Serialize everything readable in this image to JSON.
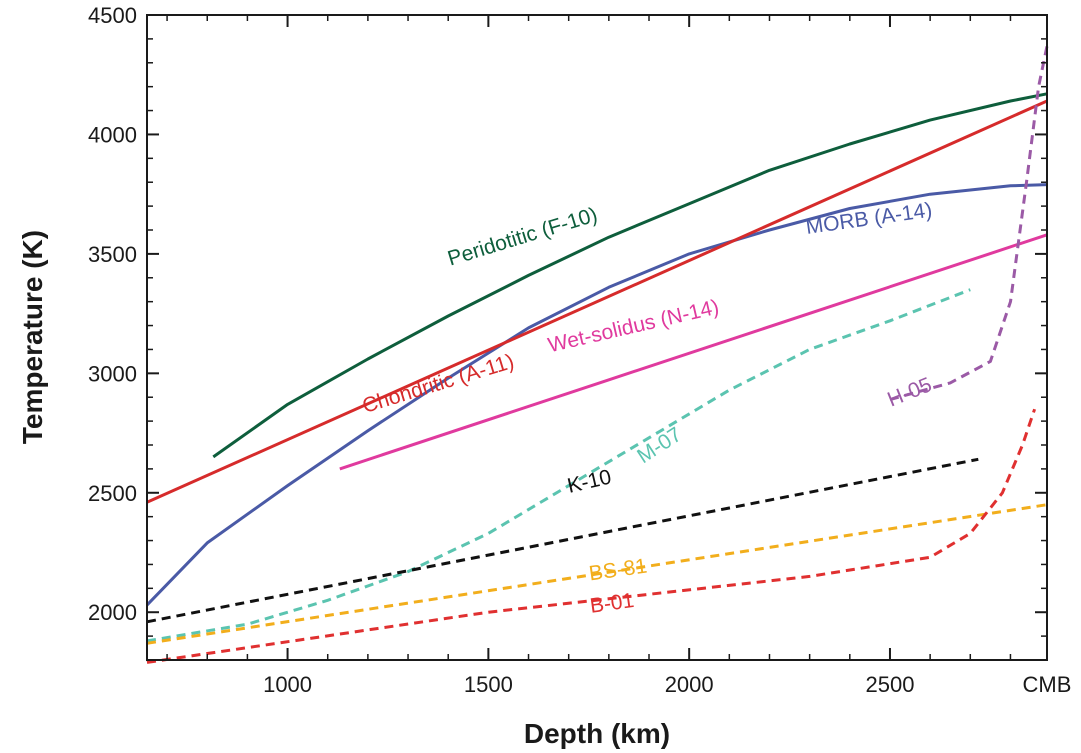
{
  "chart_data": {
    "type": "line",
    "title": "",
    "xlabel": "Depth (km)",
    "ylabel": "Temperature (K)",
    "xlim": [
      650,
      2891
    ],
    "ylim": [
      1800,
      4500
    ],
    "xticks": [
      {
        "value": 1000,
        "label": "1000"
      },
      {
        "value": 1500,
        "label": "1500"
      },
      {
        "value": 2000,
        "label": "2000"
      },
      {
        "value": 2500,
        "label": "2500"
      },
      {
        "value": 2891,
        "label": "CMB"
      }
    ],
    "yticks": [
      2000,
      2500,
      3000,
      3500,
      4000,
      4500
    ],
    "grid": false,
    "legend": "none (inline labels)",
    "series": [
      {
        "name": "Peridotitic (F-10)",
        "color": "#0e5e3c",
        "style": "solid",
        "label_pos": [
          1590,
          3545
        ],
        "label_rot": -17,
        "points": [
          [
            815,
            2650
          ],
          [
            1000,
            2870
          ],
          [
            1200,
            3060
          ],
          [
            1400,
            3240
          ],
          [
            1600,
            3410
          ],
          [
            1800,
            3570
          ],
          [
            2000,
            3710
          ],
          [
            2200,
            3850
          ],
          [
            2400,
            3960
          ],
          [
            2600,
            4060
          ],
          [
            2800,
            4140
          ],
          [
            2891,
            4170
          ]
        ]
      },
      {
        "name": "MORB (A-14)",
        "color": "#4a5aa6",
        "style": "solid",
        "label_pos": [
          2450,
          3620
        ],
        "label_rot": -8,
        "points": [
          [
            650,
            2030
          ],
          [
            800,
            2290
          ],
          [
            1000,
            2530
          ],
          [
            1200,
            2760
          ],
          [
            1400,
            2980
          ],
          [
            1600,
            3190
          ],
          [
            1800,
            3360
          ],
          [
            2000,
            3500
          ],
          [
            2200,
            3600
          ],
          [
            2400,
            3690
          ],
          [
            2600,
            3750
          ],
          [
            2800,
            3785
          ],
          [
            2891,
            3790
          ]
        ]
      },
      {
        "name": "Chondritic (A-11)",
        "color": "#d62b2b",
        "style": "solid",
        "label_pos": [
          1380,
          2930
        ],
        "label_rot": -17,
        "points": [
          [
            650,
            2460
          ],
          [
            2891,
            4140
          ]
        ]
      },
      {
        "name": "Wet-solidus (N-14)",
        "color": "#e03a9e",
        "style": "solid",
        "label_pos": [
          1865,
          3170
        ],
        "label_rot": -13,
        "points": [
          [
            1130,
            2600
          ],
          [
            2891,
            3580
          ]
        ]
      },
      {
        "name": "M-07",
        "color": "#5bc4b0",
        "style": "dashed",
        "label_pos": [
          1935,
          2675
        ],
        "label_rot": -33,
        "points": [
          [
            650,
            1880
          ],
          [
            900,
            1950
          ],
          [
            1100,
            2050
          ],
          [
            1300,
            2170
          ],
          [
            1500,
            2330
          ],
          [
            1700,
            2530
          ],
          [
            1900,
            2730
          ],
          [
            2100,
            2930
          ],
          [
            2300,
            3100
          ],
          [
            2500,
            3220
          ],
          [
            2700,
            3350
          ]
        ]
      },
      {
        "name": "H-05",
        "color": "#9b5aa6",
        "style": "dashed",
        "label_pos": [
          2555,
          2895
        ],
        "label_rot": -22,
        "points": [
          [
            2500,
            2890
          ],
          [
            2650,
            2960
          ],
          [
            2750,
            3050
          ],
          [
            2800,
            3300
          ],
          [
            2840,
            3800
          ],
          [
            2870,
            4200
          ],
          [
            2891,
            4370
          ]
        ]
      },
      {
        "name": "K-10",
        "color": "#111111",
        "style": "dashed",
        "label_pos": [
          1755,
          2520
        ],
        "label_rot": -13,
        "points": [
          [
            650,
            1960
          ],
          [
            2720,
            2640
          ]
        ]
      },
      {
        "name": "BS-81",
        "color": "#f2ae1c",
        "style": "dashed",
        "label_pos": [
          1825,
          2150
        ],
        "label_rot": -8,
        "points": [
          [
            650,
            1870
          ],
          [
            2891,
            2450
          ]
        ]
      },
      {
        "name": "B-01",
        "color": "#e03030",
        "style": "dashed",
        "label_pos": [
          1810,
          2010
        ],
        "label_rot": -8,
        "points": [
          [
            650,
            1790
          ],
          [
            1500,
            2000
          ],
          [
            2300,
            2150
          ],
          [
            2600,
            2230
          ],
          [
            2700,
            2330
          ],
          [
            2780,
            2500
          ],
          [
            2830,
            2700
          ],
          [
            2860,
            2850
          ]
        ]
      }
    ]
  }
}
